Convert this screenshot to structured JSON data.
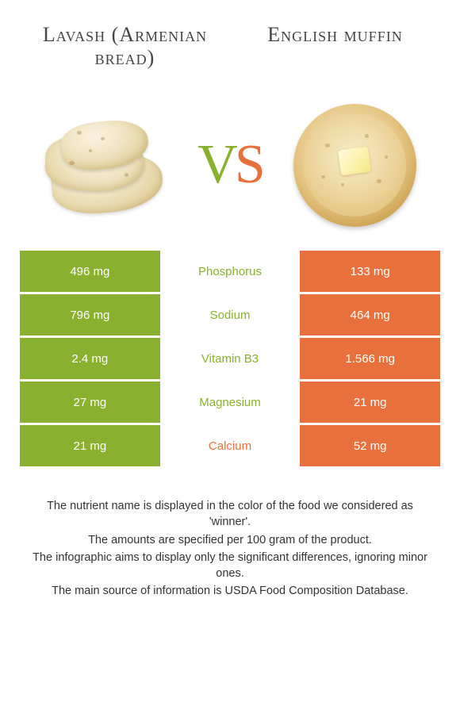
{
  "titles": {
    "left": "Lavash (Armenian bread)",
    "right": "English muffin"
  },
  "vs": {
    "v": "V",
    "s": "S"
  },
  "colors": {
    "left": "#8ab02f",
    "right": "#e8703c"
  },
  "nutrients": [
    {
      "name": "Phosphorus",
      "left": "496 mg",
      "right": "133 mg",
      "winner": "left"
    },
    {
      "name": "Sodium",
      "left": "796 mg",
      "right": "464 mg",
      "winner": "left"
    },
    {
      "name": "Vitamin B3",
      "left": "2.4 mg",
      "right": "1.566 mg",
      "winner": "left"
    },
    {
      "name": "Magnesium",
      "left": "27 mg",
      "right": "21 mg",
      "winner": "left"
    },
    {
      "name": "Calcium",
      "left": "21 mg",
      "right": "52 mg",
      "winner": "right"
    }
  ],
  "notes": [
    "The nutrient name is displayed in the color of the food we considered as 'winner'.",
    "The amounts are specified per 100 gram of the product.",
    "The infographic aims to display only the significant differences, ignoring minor ones.",
    "The main source of information is USDA Food Composition Database."
  ]
}
